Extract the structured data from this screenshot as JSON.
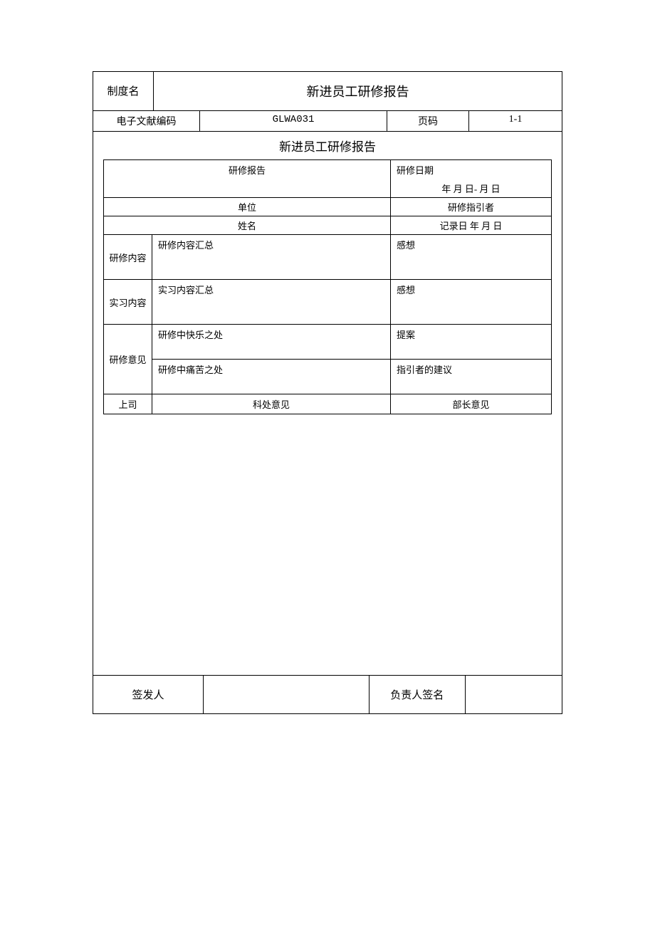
{
  "header": {
    "system_name_label": "制度名",
    "title": "新进员工研修报告",
    "doc_code_label": "电子文献编码",
    "doc_code_value": "GLWA031",
    "page_label": "页码",
    "page_value": "1-1"
  },
  "subtitle": "新进员工研修报告",
  "table": {
    "report_label": "研修报告",
    "date_label": "研修日期",
    "date_value": "年  月  日-  月  日",
    "unit_label": "单位",
    "guide_label": "研修指引者",
    "name_label": "姓名",
    "record_date_label": "记录日   年  月   日",
    "rows": {
      "r1": {
        "side": "研修内容",
        "mid": "研修内容汇总",
        "right": "感想"
      },
      "r2": {
        "side": "实习内容",
        "mid": "实习内容汇总",
        "right": "感想"
      },
      "r3": {
        "side": "研修意见",
        "sub1_mid": "研修中快乐之处",
        "sub1_right": "提案",
        "sub2_mid": "研修中痛苦之处",
        "sub2_right": "指引者的建议"
      }
    },
    "bottom": {
      "c1": "上司",
      "c2": "科处意见",
      "c3": "部长意见"
    }
  },
  "footer": {
    "issuer_label": "签发人",
    "responsible_label": "负责人签名"
  }
}
